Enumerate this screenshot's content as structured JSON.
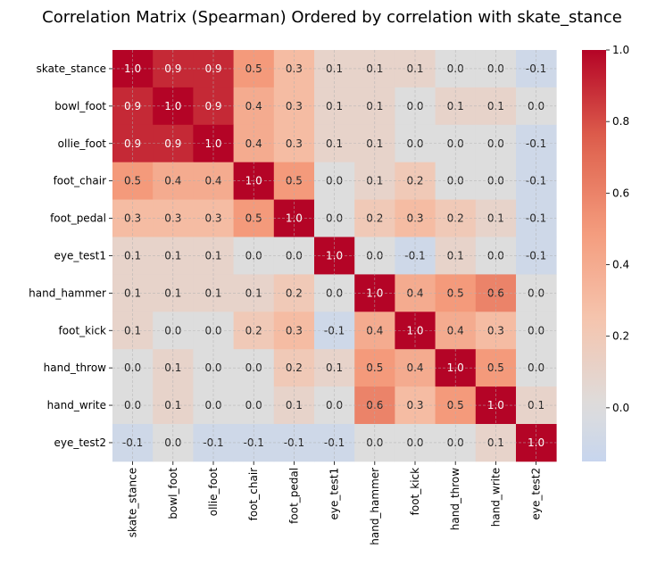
{
  "chart_data": {
    "type": "heatmap",
    "title": "Correlation Matrix (Spearman) Ordered by correlation with skate_stance",
    "row_labels": [
      "skate_stance",
      "bowl_foot",
      "ollie_foot",
      "foot_chair",
      "foot_pedal",
      "eye_test1",
      "hand_hammer",
      "foot_kick",
      "hand_throw",
      "hand_write",
      "eye_test2"
    ],
    "col_labels": [
      "skate_stance",
      "bowl_foot",
      "ollie_foot",
      "foot_chair",
      "foot_pedal",
      "eye_test1",
      "hand_hammer",
      "foot_kick",
      "hand_throw",
      "hand_write",
      "eye_test2"
    ],
    "values": [
      [
        1.0,
        0.9,
        0.9,
        0.5,
        0.3,
        0.1,
        0.1,
        0.1,
        0.0,
        0.0,
        -0.1
      ],
      [
        0.9,
        1.0,
        0.9,
        0.4,
        0.3,
        0.1,
        0.1,
        0.0,
        0.1,
        0.1,
        -0.0
      ],
      [
        0.9,
        0.9,
        1.0,
        0.4,
        0.3,
        0.1,
        0.1,
        0.0,
        0.0,
        0.0,
        -0.1
      ],
      [
        0.5,
        0.4,
        0.4,
        1.0,
        0.5,
        0.0,
        0.1,
        0.2,
        0.0,
        -0.0,
        -0.1
      ],
      [
        0.3,
        0.3,
        0.3,
        0.5,
        1.0,
        0.0,
        0.2,
        0.3,
        0.2,
        0.1,
        -0.1
      ],
      [
        0.1,
        0.1,
        0.1,
        0.0,
        0.0,
        1.0,
        -0.0,
        -0.1,
        0.1,
        0.0,
        -0.1
      ],
      [
        0.1,
        0.1,
        0.1,
        0.1,
        0.2,
        -0.0,
        1.0,
        0.4,
        0.5,
        0.6,
        0.0
      ],
      [
        0.1,
        0.0,
        0.0,
        0.2,
        0.3,
        -0.1,
        0.4,
        1.0,
        0.4,
        0.3,
        0.0
      ],
      [
        0.0,
        0.1,
        0.0,
        0.0,
        0.2,
        0.1,
        0.5,
        0.4,
        1.0,
        0.5,
        0.0
      ],
      [
        0.0,
        0.1,
        0.0,
        -0.0,
        0.1,
        0.0,
        0.6,
        0.3,
        0.5,
        1.0,
        0.1
      ],
      [
        -0.1,
        -0.0,
        -0.1,
        -0.1,
        -0.1,
        -0.1,
        0.0,
        0.0,
        0.0,
        0.1,
        1.0
      ]
    ],
    "value_format": "one decimal",
    "colormap": "coolwarm",
    "center": 0,
    "vmin": -0.15,
    "vmax": 1.0,
    "colorbar_ticks": [
      "1.0",
      "0.8",
      "0.6",
      "0.4",
      "0.2",
      "0.0"
    ],
    "grid": true,
    "colors": {
      "low": "#b7cff9",
      "mid": "#dddcdc",
      "high": "#b40426"
    }
  }
}
